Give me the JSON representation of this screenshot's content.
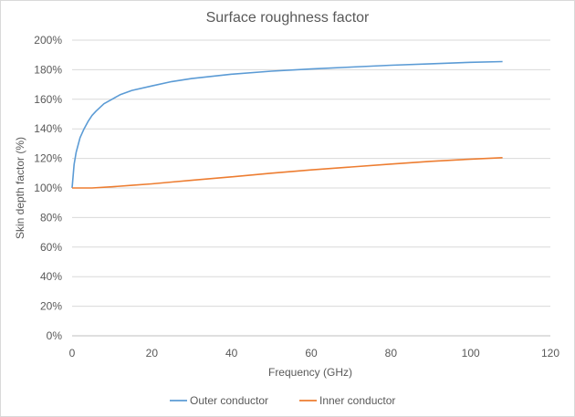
{
  "chart_data": {
    "type": "line",
    "title": "Surface roughness factor",
    "xlabel": "Frequency (GHz)",
    "ylabel": "Skin depth factor (%)",
    "xlim": [
      0,
      120
    ],
    "ylim": [
      0,
      200
    ],
    "x_ticks": [
      0,
      20,
      40,
      60,
      80,
      100,
      120
    ],
    "y_ticks": [
      "0%",
      "20%",
      "40%",
      "60%",
      "80%",
      "100%",
      "120%",
      "140%",
      "160%",
      "180%",
      "200%"
    ],
    "grid": "horizontal",
    "legend_position": "bottom",
    "series": [
      {
        "name": "Outer conductor",
        "color": "#5B9BD5",
        "x": [
          0,
          0.5,
          1,
          2,
          3,
          4,
          5,
          6,
          8,
          10,
          12,
          15,
          20,
          25,
          30,
          40,
          50,
          60,
          70,
          80,
          90,
          100,
          108
        ],
        "y": [
          100,
          116,
          124,
          134,
          140,
          145,
          149,
          152,
          157,
          160,
          163,
          166,
          169,
          172,
          174,
          177,
          179,
          180.5,
          181.8,
          183,
          184,
          185,
          185.5
        ]
      },
      {
        "name": "Inner conductor",
        "color": "#ED7D31",
        "x": [
          0,
          2,
          5,
          10,
          15,
          20,
          25,
          30,
          40,
          50,
          60,
          70,
          80,
          90,
          100,
          108
        ],
        "y": [
          100,
          100,
          100,
          100.8,
          101.8,
          102.8,
          104,
          105.2,
          107.5,
          110,
          112.2,
          114.2,
          116.2,
          118,
          119.5,
          120.5
        ]
      }
    ]
  }
}
